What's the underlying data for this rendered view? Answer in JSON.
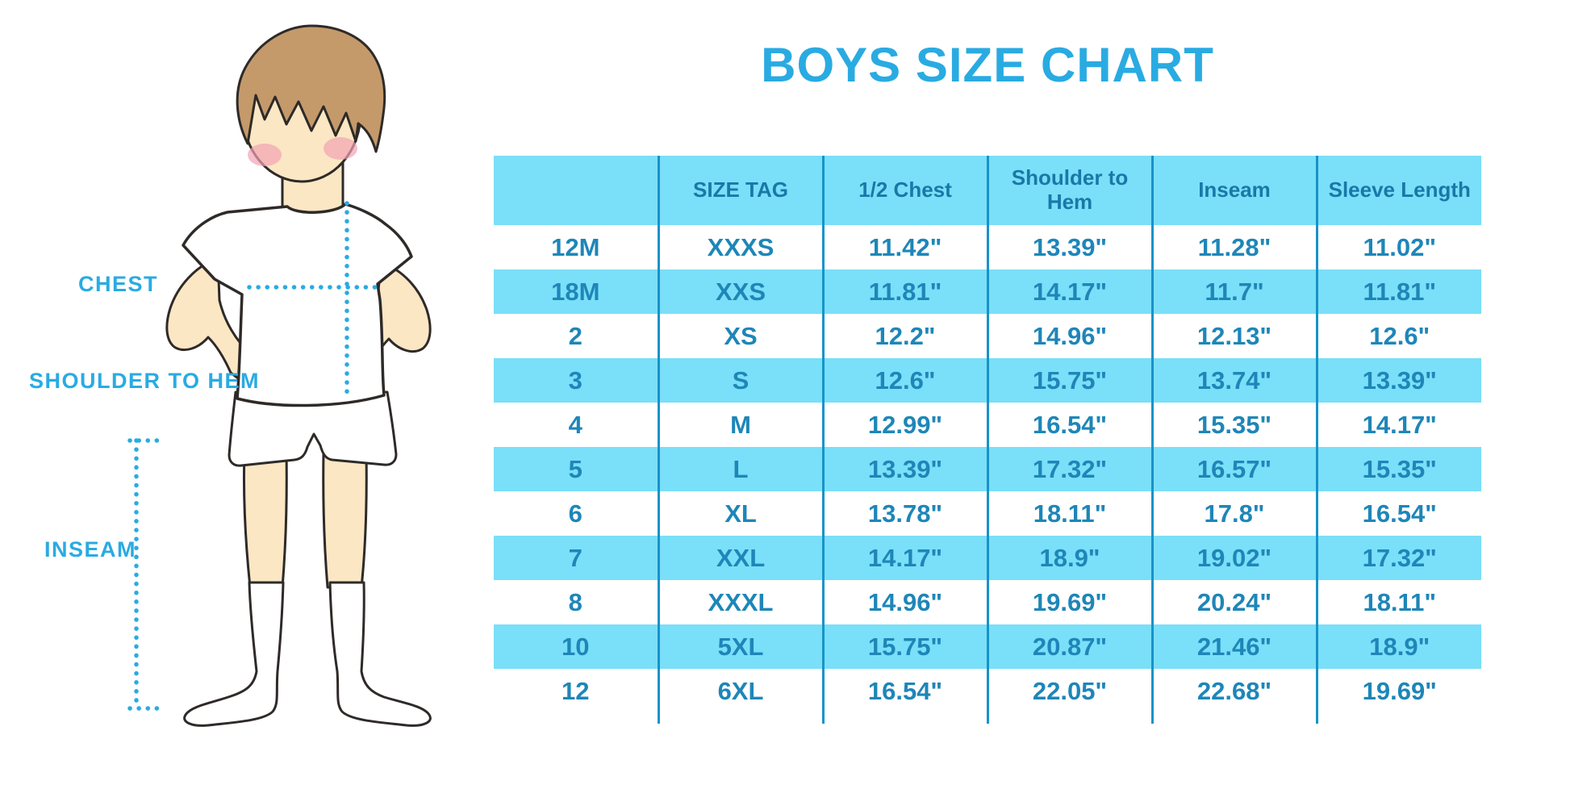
{
  "page": {
    "title": "BOYS SIZE CHART",
    "background": "#FFFFFF"
  },
  "colors": {
    "accent_blue": "#29ABE2",
    "table_fill_cyan": "#7ADFF8",
    "table_line_blue": "#1793C9",
    "table_text_blue": "#1E86B8",
    "skin": "#FBE7C4",
    "hair_brown": "#C49A6B",
    "blush_pink": "#F2A3B3",
    "outline": "#2E2A28"
  },
  "diagram": {
    "labels": {
      "chest": "CHEST",
      "shoulder_to_hem": "SHOULDER TO HEM",
      "inseam": "INSEAM"
    }
  },
  "chart_data": {
    "type": "table",
    "title": "BOYS SIZE CHART",
    "columns": [
      "",
      "SIZE TAG",
      "1/2 Chest",
      "Shoulder to Hem",
      "Inseam",
      "Sleeve Length"
    ],
    "rows": [
      [
        "12M",
        "XXXS",
        "11.42\"",
        "13.39\"",
        "11.28\"",
        "11.02\""
      ],
      [
        "18M",
        "XXS",
        "11.81\"",
        "14.17\"",
        "11.7\"",
        "11.81\""
      ],
      [
        "2",
        "XS",
        "12.2\"",
        "14.96\"",
        "12.13\"",
        "12.6\""
      ],
      [
        "3",
        "S",
        "12.6\"",
        "15.75\"",
        "13.74\"",
        "13.39\""
      ],
      [
        "4",
        "M",
        "12.99\"",
        "16.54\"",
        "15.35\"",
        "14.17\""
      ],
      [
        "5",
        "L",
        "13.39\"",
        "17.32\"",
        "16.57\"",
        "15.35\""
      ],
      [
        "6",
        "XL",
        "13.78\"",
        "18.11\"",
        "17.8\"",
        "16.54\""
      ],
      [
        "7",
        "XXL",
        "14.17\"",
        "18.9\"",
        "19.02\"",
        "17.32\""
      ],
      [
        "8",
        "XXXL",
        "14.96\"",
        "19.69\"",
        "20.24\"",
        "18.11\""
      ],
      [
        "10",
        "5XL",
        "15.75\"",
        "20.87\"",
        "21.46\"",
        "18.9\""
      ],
      [
        "12",
        "6XL",
        "16.54\"",
        "22.05\"",
        "22.68\"",
        "19.69\""
      ]
    ],
    "units": "inches",
    "row_striping": [
      "white",
      "cyan"
    ]
  }
}
